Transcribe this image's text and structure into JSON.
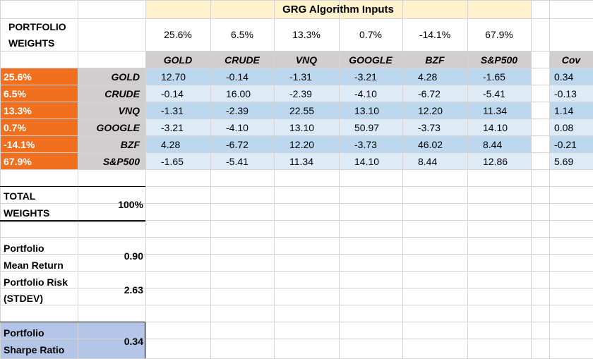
{
  "title": "GRG Algorithm Inputs",
  "portfolio_weights_label": [
    "PORTFOLIO",
    "WEIGHTS"
  ],
  "top_weights": [
    "25.6%",
    "6.5%",
    "13.3%",
    "0.7%",
    "-14.1%",
    "67.9%"
  ],
  "assets": [
    "GOLD",
    "CRUDE",
    "VNQ",
    "GOOGLE",
    "BZF",
    "S&P500"
  ],
  "cov_header": "Cov",
  "rows": [
    {
      "weight": "25.6%",
      "asset": "GOLD",
      "values": [
        "12.70",
        "-0.14",
        "-1.31",
        "-3.21",
        "4.28",
        "-1.65"
      ],
      "cov": "0.34"
    },
    {
      "weight": "6.5%",
      "asset": "CRUDE",
      "values": [
        "-0.14",
        "16.00",
        "-2.39",
        "-4.10",
        "-6.72",
        "-5.41"
      ],
      "cov": "-0.13"
    },
    {
      "weight": "13.3%",
      "asset": "VNQ",
      "values": [
        "-1.31",
        "-2.39",
        "22.55",
        "13.10",
        "12.20",
        "11.34"
      ],
      "cov": "1.14"
    },
    {
      "weight": "0.7%",
      "asset": "GOOGLE",
      "values": [
        "-3.21",
        "-4.10",
        "13.10",
        "50.97",
        "-3.73",
        "14.10"
      ],
      "cov": "0.08"
    },
    {
      "weight": "-14.1%",
      "asset": "BZF",
      "values": [
        "4.28",
        "-6.72",
        "12.20",
        "-3.73",
        "46.02",
        "8.44"
      ],
      "cov": "-0.21"
    },
    {
      "weight": "67.9%",
      "asset": "S&P500",
      "values": [
        "-1.65",
        "-5.41",
        "11.34",
        "14.10",
        "8.44",
        "12.86"
      ],
      "cov": "5.69"
    }
  ],
  "summary": {
    "total_weights": {
      "label": [
        "TOTAL",
        "WEIGHTS"
      ],
      "value": "100%"
    },
    "mean_return": {
      "label": [
        "Portfolio",
        "Mean Return"
      ],
      "value": "0.90"
    },
    "risk": {
      "label": [
        "Portfolio Risk",
        "(STDEV)"
      ],
      "value": "2.63"
    },
    "sharpe": {
      "label": [
        "Portfolio",
        "Sharpe Ratio"
      ],
      "value": "0.34"
    }
  },
  "colors": {
    "orange": "#f07020",
    "gray": "#d0cece",
    "blue_dark": "#bdd7ee",
    "blue_light": "#ddebf7",
    "title_bg": "#fff2cc",
    "sharpe_bg": "#b4c6e7",
    "grid": "#d4d4d4"
  }
}
